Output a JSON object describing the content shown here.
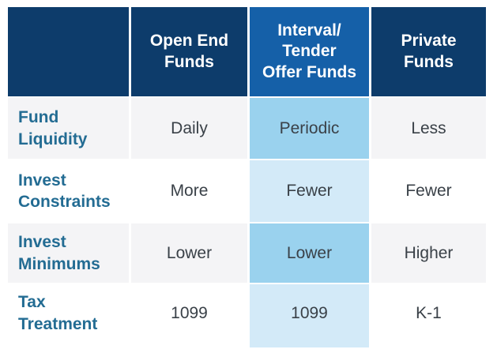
{
  "table": {
    "corner": "",
    "column_headers": [
      {
        "text": "Open End\nFunds",
        "highlighted": false
      },
      {
        "text": "Interval/\nTender\nOffer Funds",
        "highlighted": true
      },
      {
        "text": "Private\nFunds",
        "highlighted": false
      }
    ],
    "rows": [
      {
        "label": "Fund\nLiquidity",
        "values": [
          "Daily",
          "Periodic",
          "Less"
        ]
      },
      {
        "label": "Invest\nConstraints",
        "values": [
          "More",
          "Fewer",
          "Fewer"
        ]
      },
      {
        "label": "Invest\nMinimums",
        "values": [
          "Lower",
          "Lower",
          "Higher"
        ]
      },
      {
        "label": "Tax\nTreatment",
        "values": [
          "1099",
          "1099",
          "K-1"
        ]
      }
    ]
  },
  "chart_data": {
    "type": "table",
    "title": "",
    "columns": [
      "",
      "Open End Funds",
      "Interval/Tender Offer Funds",
      "Private Funds"
    ],
    "rows": [
      [
        "Fund Liquidity",
        "Daily",
        "Periodic",
        "Less"
      ],
      [
        "Invest Constraints",
        "More",
        "Fewer",
        "Fewer"
      ],
      [
        "Invest Minimums",
        "Lower",
        "Lower",
        "Higher"
      ],
      [
        "Tax Treatment",
        "1099",
        "1099",
        "K-1"
      ]
    ],
    "highlighted_column": "Interval/Tender Offer Funds",
    "layout": "comparison table, header row dark navy, middle column highlighted in blue, alternating gray/white body rows"
  },
  "colors": {
    "header_navy": "#0D3C6B",
    "header_highlight_blue": "#1560A8",
    "highlight_cell_medium": "#9AD2EE",
    "highlight_cell_light": "#D3EAF8",
    "row_alt_gray": "#F4F4F6",
    "row_white": "#FFFFFF",
    "label_text_blue": "#236C93",
    "value_text": "#3A4148",
    "header_text": "#FFFFFF"
  }
}
